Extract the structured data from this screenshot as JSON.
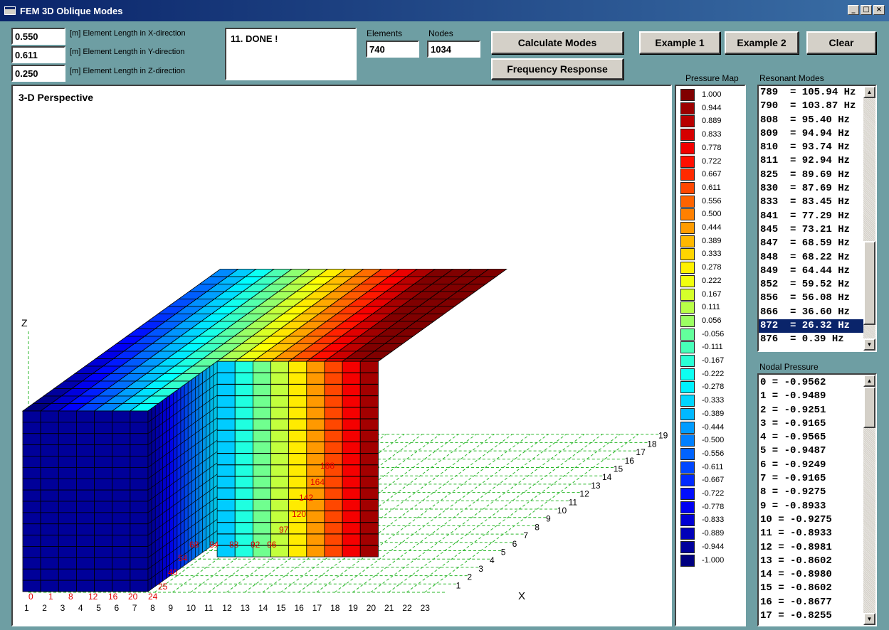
{
  "window": {
    "title": "FEM 3D Oblique Modes",
    "min": "_",
    "max": "□",
    "close": "×"
  },
  "inputs": [
    {
      "value": "0.550",
      "label": "[m] Element Length in X-direction"
    },
    {
      "value": "0.611",
      "label": "[m] Element Length in Y-direction"
    },
    {
      "value": "0.250",
      "label": "[m] Element Length in Z-direction"
    }
  ],
  "status": "11. DONE !",
  "elements": {
    "label": "Elements",
    "value": "740"
  },
  "nodes": {
    "label": "Nodes",
    "value": "1034"
  },
  "buttons": {
    "calc": "Calculate Modes",
    "freq": "Frequency Response",
    "ex1": "Example 1",
    "ex2": "Example 2",
    "clear": "Clear"
  },
  "view": {
    "title": "3-D Perspective",
    "axis_x": "X",
    "axis_z": "Z",
    "x_ticks": [
      "1",
      "2",
      "3",
      "4",
      "5",
      "6",
      "7",
      "8",
      "9",
      "10",
      "11",
      "12",
      "13",
      "14",
      "15",
      "16",
      "17",
      "18",
      "19",
      "20",
      "21",
      "22",
      "23"
    ],
    "y_ticks": [
      "1",
      "2",
      "3",
      "4",
      "5",
      "6",
      "7",
      "8",
      "9",
      "10",
      "11",
      "12",
      "13",
      "14",
      "15",
      "16",
      "17",
      "18",
      "19"
    ],
    "front_nodes": [
      "0",
      "1",
      "8",
      "12",
      "16",
      "20",
      "24"
    ],
    "side_nodes": [
      "25",
      "40",
      "54"
    ],
    "top_nodes": [
      "68",
      "84",
      "88",
      "92",
      "96",
      "97",
      "120",
      "142",
      "164",
      "188"
    ]
  },
  "pressure_map": {
    "title": "Pressure Map",
    "labels": [
      "1.000",
      "0.944",
      "0.889",
      "0.833",
      "0.778",
      "0.722",
      "0.667",
      "0.611",
      "0.556",
      "0.500",
      "0.444",
      "0.389",
      "0.333",
      "0.278",
      "0.222",
      "0.167",
      "0.111",
      "0.056",
      "-0.056",
      "-0.111",
      "-0.167",
      "-0.222",
      "-0.278",
      "-0.333",
      "-0.389",
      "-0.444",
      "-0.500",
      "-0.556",
      "-0.611",
      "-0.667",
      "-0.722",
      "-0.778",
      "-0.833",
      "-0.889",
      "-0.944",
      "-1.000"
    ]
  },
  "resonant_modes": {
    "title": "Resonant Modes",
    "items": [
      "789  = 105.94 Hz",
      "790  = 103.87 Hz",
      "808  = 95.40 Hz",
      "809  = 94.94 Hz",
      "810  = 93.74 Hz",
      "811  = 92.94 Hz",
      "825  = 89.69 Hz",
      "830  = 87.69 Hz",
      "833  = 83.45 Hz",
      "841  = 77.29 Hz",
      "845  = 73.21 Hz",
      "847  = 68.59 Hz",
      "848  = 68.22 Hz",
      "849  = 64.44 Hz",
      "852  = 59.52 Hz",
      "856  = 56.08 Hz",
      "866  = 36.60 Hz",
      "872  = 26.32 Hz",
      "876  = 0.39 Hz"
    ],
    "selected_index": 17
  },
  "nodal_pressure": {
    "title": "Nodal Pressure",
    "items": [
      "0 = -0.9562",
      "1 = -0.9489",
      "2 = -0.9251",
      "3 = -0.9165",
      "4 = -0.9565",
      "5 = -0.9487",
      "6 = -0.9249",
      "7 = -0.9165",
      "8 = -0.9275",
      "9 = -0.8933",
      "10 = -0.9275",
      "11 = -0.8933",
      "12 = -0.8981",
      "13 = -0.8602",
      "14 = -0.8980",
      "15 = -0.8602",
      "16 = -0.8677",
      "17 = -0.8255"
    ]
  }
}
